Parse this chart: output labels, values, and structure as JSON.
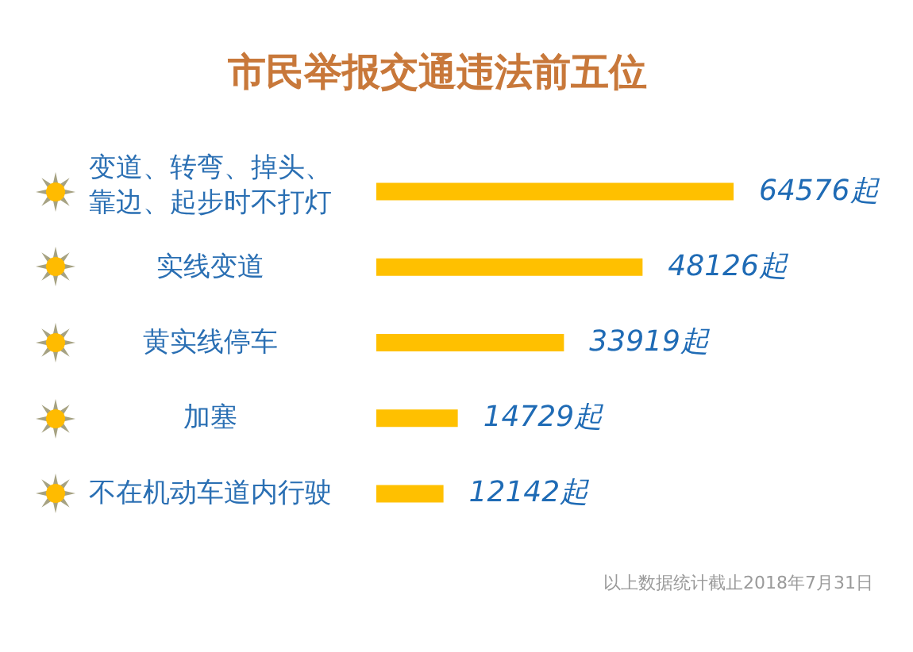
{
  "chart_data": {
    "type": "bar",
    "orientation": "horizontal",
    "title": "市民举报交通违法前五位",
    "categories": [
      "变道、转弯、掉头、靠边、起步时不打灯",
      "实线变道",
      "黄实线停车",
      "加塞",
      "不在机动车道内行驶"
    ],
    "values": [
      64576,
      48126,
      33919,
      14729,
      12142
    ],
    "value_labels": [
      "64576起",
      "48126起",
      "33919起",
      "14729起",
      "12142起"
    ],
    "color": "#ffc000",
    "annotations": [
      "以上数据统计截止2018年7月31日"
    ]
  }
}
